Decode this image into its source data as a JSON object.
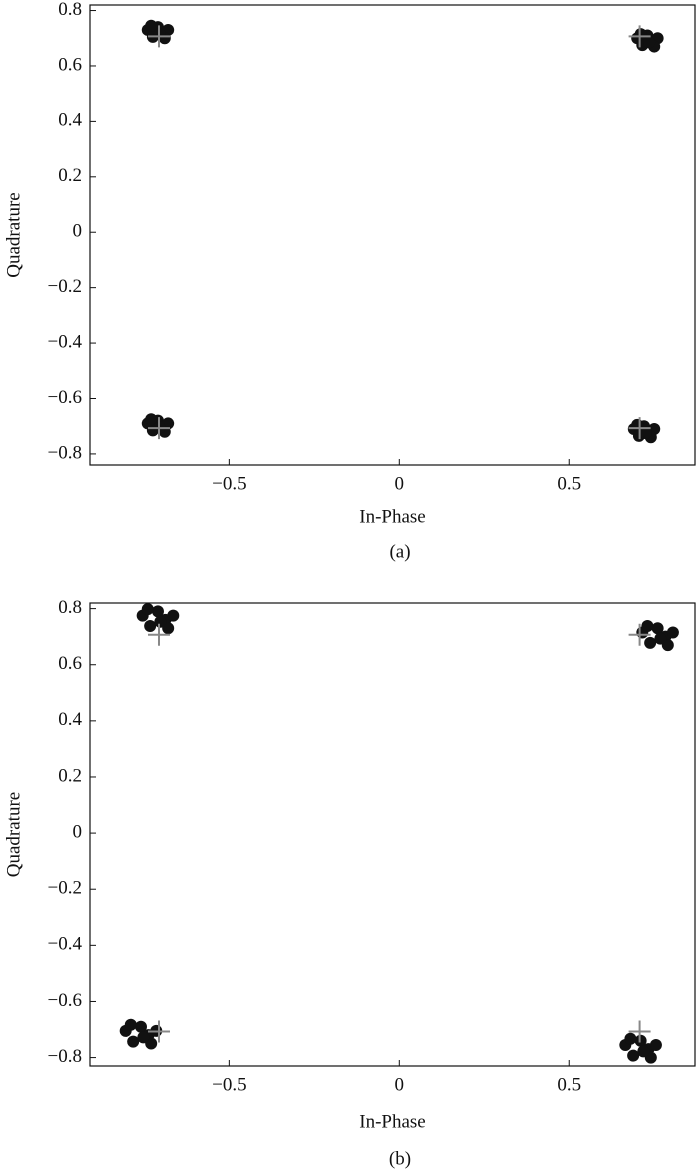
{
  "chart_data": [
    {
      "type": "scatter",
      "xlabel": "In-Phase",
      "ylabel": "Quadrature",
      "caption": "(a)",
      "xlim": [
        -0.91,
        0.87
      ],
      "ylim": [
        -0.84,
        0.82
      ],
      "xticks": [
        {
          "value": -0.5,
          "label": "−0.5"
        },
        0,
        0.5
      ],
      "yticks": [
        0.8,
        0.6,
        0.4,
        0.2,
        0,
        {
          "value": -0.2,
          "label": "−0.2"
        },
        {
          "value": -0.4,
          "label": "−0.4"
        },
        {
          "value": -0.6,
          "label": "−0.6"
        },
        {
          "value": -0.8,
          "label": "−0.8"
        }
      ],
      "series": [
        {
          "color": "#111111",
          "marker": "o",
          "x": [
            -0.74,
            -0.725,
            -0.71,
            -0.695,
            -0.68,
            -0.73,
            -0.69,
            -0.705,
            0.7,
            0.715,
            0.73,
            0.745,
            0.76,
            0.71,
            0.75,
            0.735,
            -0.74,
            -0.725,
            -0.71,
            -0.695,
            -0.68,
            -0.73,
            -0.69,
            -0.705,
            0.69,
            0.705,
            0.72,
            0.735,
            0.75,
            0.7,
            0.74,
            0.725
          ],
          "y": [
            0.73,
            0.705,
            0.74,
            0.72,
            0.73,
            0.745,
            0.7,
            0.715,
            0.7,
            0.675,
            0.71,
            0.69,
            0.7,
            0.715,
            0.67,
            0.685,
            -0.69,
            -0.715,
            -0.68,
            -0.7,
            -0.69,
            -0.675,
            -0.72,
            -0.705,
            -0.71,
            -0.735,
            -0.7,
            -0.72,
            -0.71,
            -0.695,
            -0.74,
            -0.725
          ]
        },
        {
          "color": "#888888",
          "marker": "+",
          "x": [
            -0.707,
            0.707,
            -0.707,
            0.707
          ],
          "y": [
            0.707,
            0.707,
            -0.707,
            -0.707
          ]
        }
      ]
    },
    {
      "type": "scatter",
      "xlabel": "In-Phase",
      "ylabel": "Quadrature",
      "caption": "(b)",
      "xlim": [
        -0.91,
        0.87
      ],
      "ylim": [
        -0.83,
        0.82
      ],
      "xticks": [
        {
          "value": -0.5,
          "label": "−0.5"
        },
        0,
        0.5
      ],
      "yticks": [
        0.8,
        0.6,
        0.4,
        0.2,
        0,
        {
          "value": -0.2,
          "label": "−0.2"
        },
        {
          "value": -0.4,
          "label": "−0.4"
        },
        {
          "value": -0.6,
          "label": "−0.6"
        },
        {
          "value": -0.8,
          "label": "−0.8"
        }
      ],
      "series": [
        {
          "color": "#111111",
          "marker": "o",
          "x": [
            -0.755,
            -0.733,
            -0.71,
            -0.688,
            -0.665,
            -0.74,
            -0.68,
            -0.703,
            0.715,
            0.738,
            0.76,
            0.783,
            0.805,
            0.73,
            0.79,
            0.768,
            -0.805,
            -0.783,
            -0.76,
            -0.738,
            -0.715,
            -0.79,
            -0.73,
            -0.753,
            0.665,
            0.688,
            0.71,
            0.733,
            0.755,
            0.68,
            0.74,
            0.718
          ],
          "y": [
            0.775,
            0.738,
            0.79,
            0.76,
            0.775,
            0.798,
            0.73,
            0.753,
            0.715,
            0.678,
            0.73,
            0.7,
            0.715,
            0.738,
            0.67,
            0.693,
            -0.705,
            -0.743,
            -0.69,
            -0.72,
            -0.705,
            -0.683,
            -0.75,
            -0.728,
            -0.755,
            -0.793,
            -0.74,
            -0.77,
            -0.755,
            -0.733,
            -0.8,
            -0.778
          ]
        },
        {
          "color": "#888888",
          "marker": "+",
          "x": [
            -0.707,
            0.707,
            -0.707,
            0.707
          ],
          "y": [
            0.707,
            0.707,
            -0.707,
            -0.707
          ]
        }
      ]
    }
  ]
}
